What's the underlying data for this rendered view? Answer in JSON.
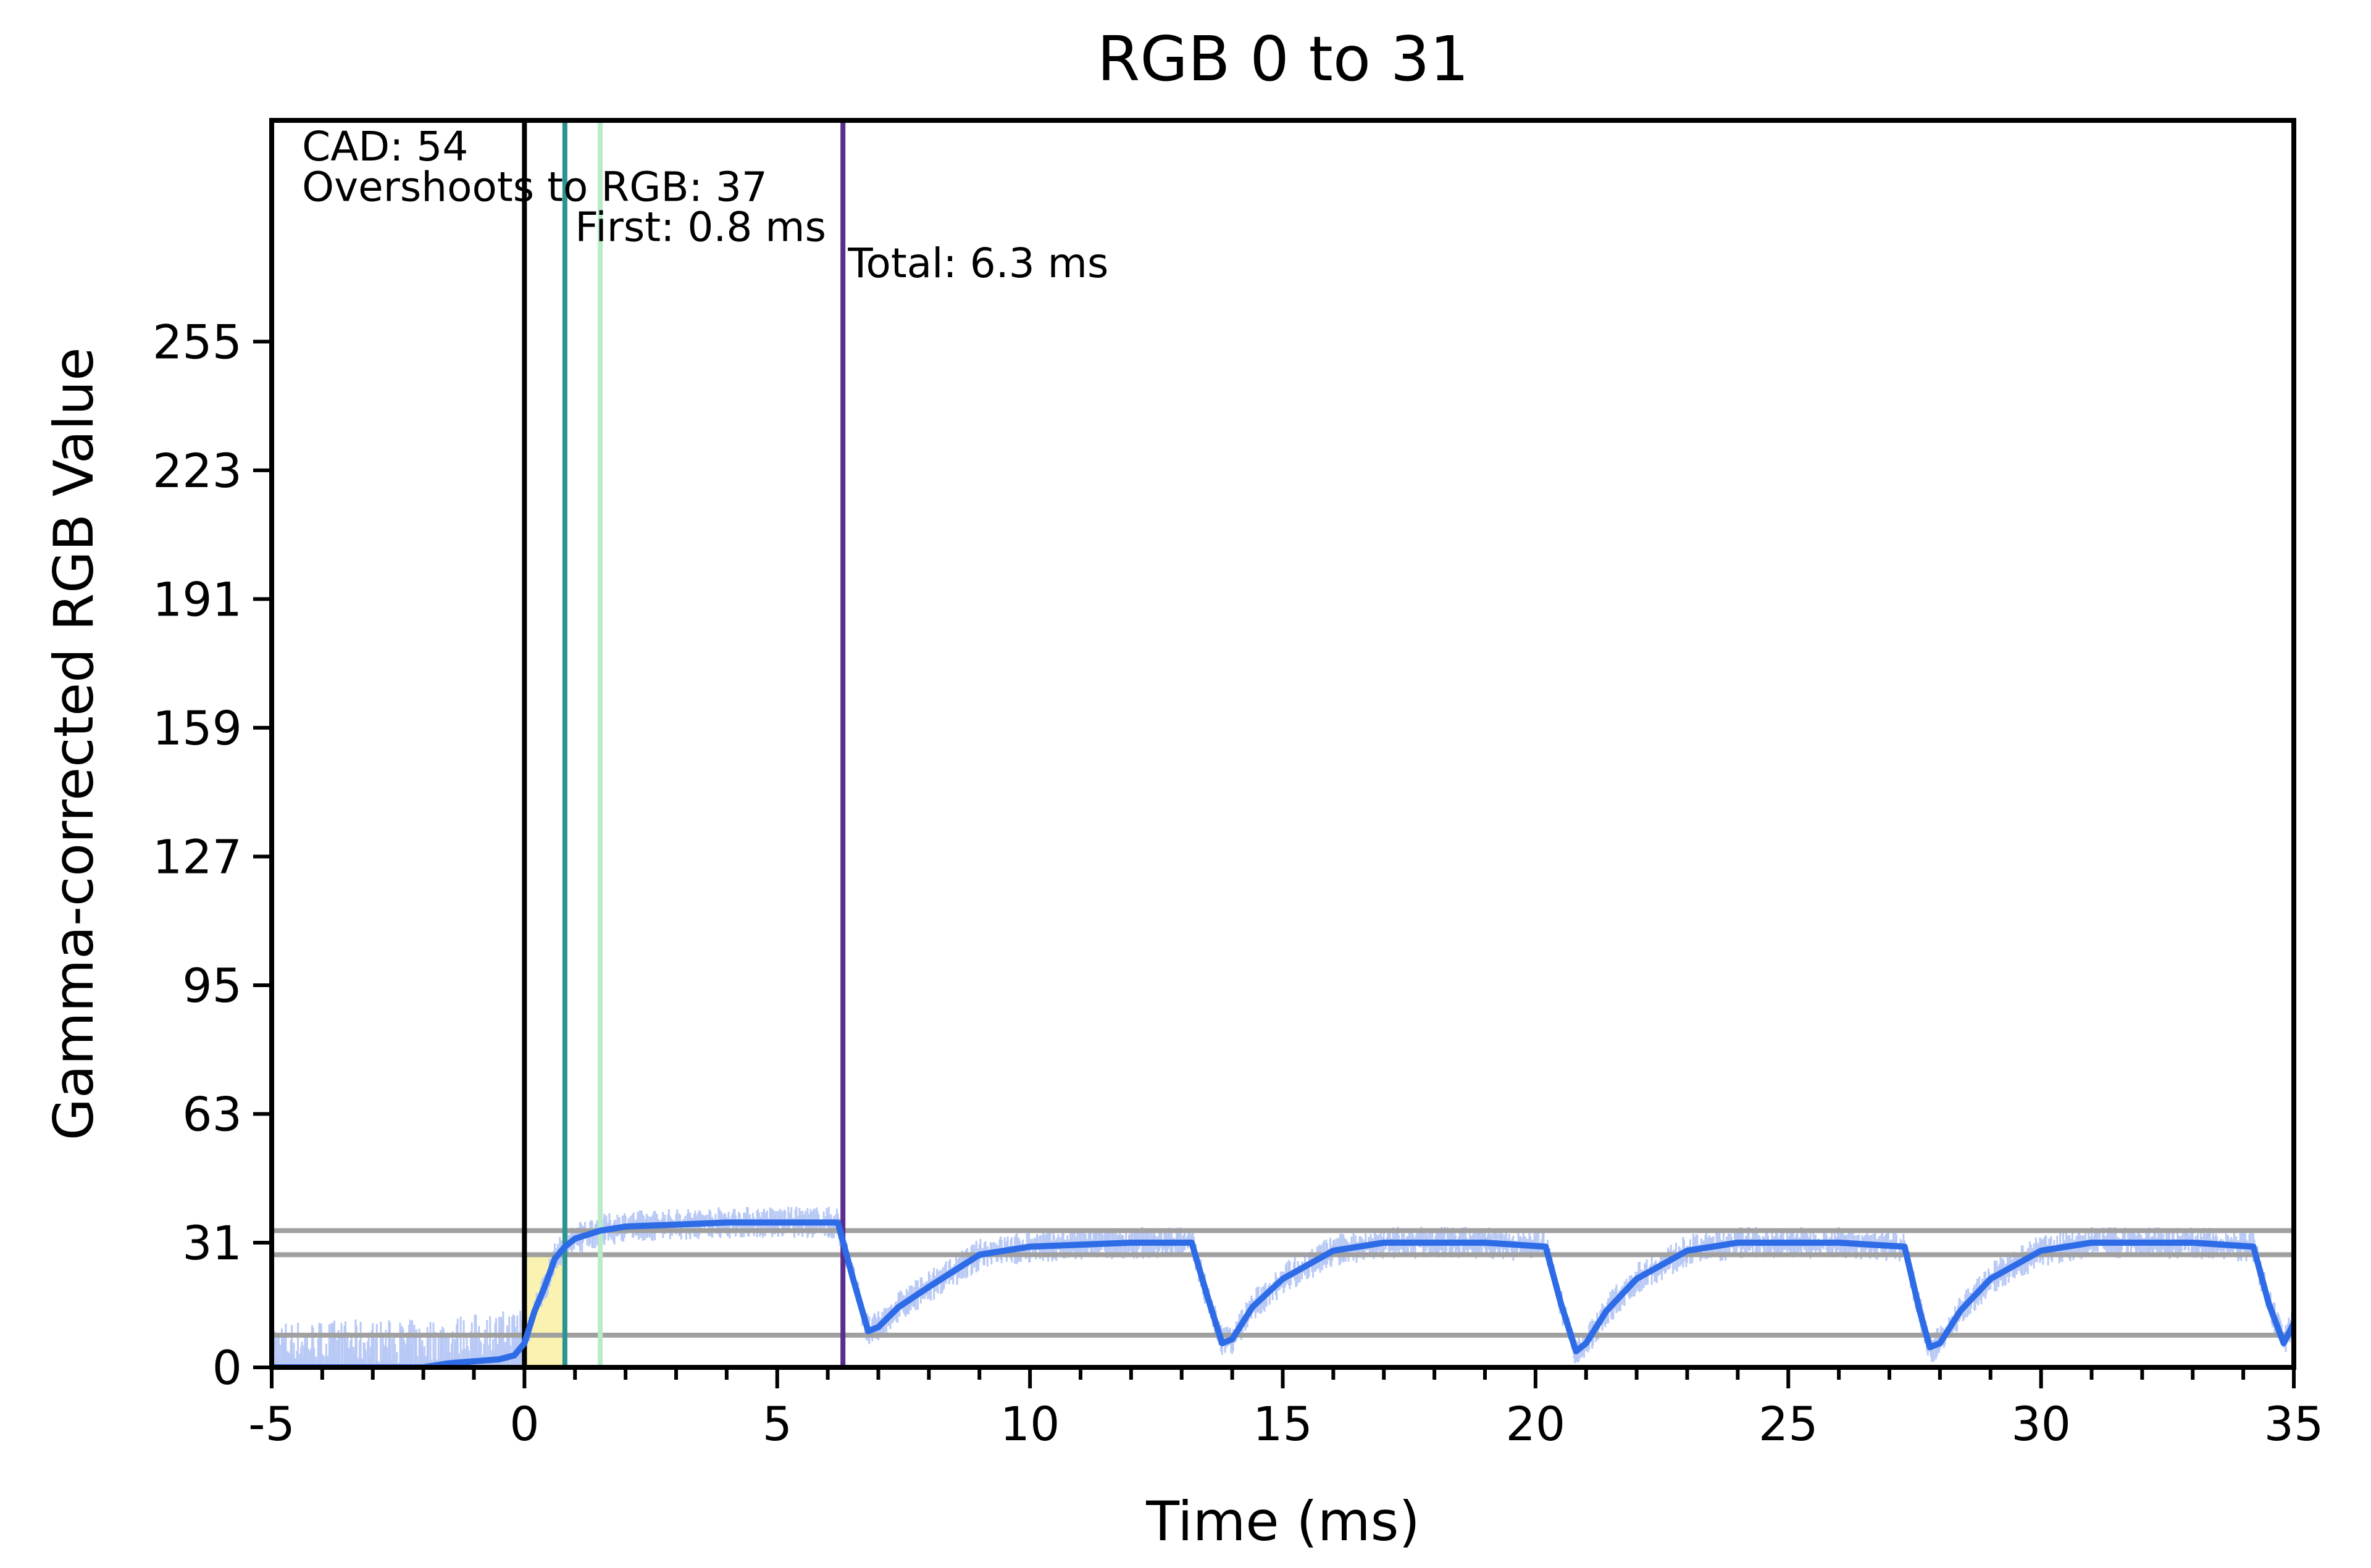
{
  "chart_data": {
    "type": "line",
    "title": "RGB 0 to 31",
    "xlabel": "Time (ms)",
    "ylabel": "Gamma-corrected RGB Value",
    "xlim": [
      -5,
      35
    ],
    "ylim": [
      0,
      310
    ],
    "x_ticks": [
      -5,
      0,
      5,
      10,
      15,
      20,
      25,
      30,
      35
    ],
    "x_tick_labels": [
      "-5",
      "0",
      "5",
      "10",
      "15",
      "20",
      "25",
      "30",
      "35"
    ],
    "y_ticks": [
      0,
      31,
      63,
      95,
      127,
      159,
      191,
      223,
      255
    ],
    "y_tick_labels": [
      "0",
      "31",
      "63",
      "95",
      "127",
      "159",
      "191",
      "223",
      "255"
    ],
    "grid": false,
    "annotations": [
      {
        "text": "CAD: 54",
        "x": -4.4,
        "y": 300
      },
      {
        "text": "Overshoots to RGB: 37",
        "x": -4.4,
        "y": 290
      },
      {
        "text": "First: 0.8 ms",
        "x": 1.0,
        "y": 280
      },
      {
        "text": "Total: 6.3 ms",
        "x": 6.4,
        "y": 271
      }
    ],
    "horizontal_lines": [
      {
        "y": 34,
        "color": "#a0a0a0"
      },
      {
        "y": 28,
        "color": "#a0a0a0"
      },
      {
        "y": 8,
        "color": "#a0a0a0"
      }
    ],
    "vertical_lines": [
      {
        "x": 0,
        "color": "#000000"
      },
      {
        "x": 0.8,
        "color": "#2a9490"
      },
      {
        "x": 1.5,
        "color": "#b8ecc8"
      },
      {
        "x": 6.3,
        "color": "#5b2d8e"
      }
    ],
    "shaded_region": {
      "x": [
        0,
        0.8
      ],
      "y": [
        0,
        28
      ],
      "color": "#f8ef9c"
    },
    "series": [
      {
        "style": "smoothed",
        "color": "#2e6be6",
        "x": [
          -5,
          -2,
          -1.5,
          -1,
          -0.5,
          -0.2,
          0,
          0.2,
          0.4,
          0.6,
          0.8,
          1.0,
          1.5,
          2,
          3,
          4,
          5,
          6.2,
          6.5,
          6.8,
          7.0,
          7.4,
          8,
          8.5,
          9,
          10,
          11,
          12,
          13.2,
          13.5,
          13.8,
          14.0,
          14.4,
          15,
          16,
          17,
          18,
          19,
          20.2,
          20.5,
          20.8,
          21.0,
          21.4,
          22,
          23,
          24,
          25,
          26,
          27.3,
          27.6,
          27.8,
          28.0,
          28.4,
          29,
          30,
          31,
          32,
          33,
          34.2,
          34.5,
          34.8,
          35
        ],
        "y": [
          0,
          0,
          1,
          1.5,
          2,
          3,
          6,
          14,
          20,
          27,
          30,
          32,
          34,
          35,
          35.5,
          36,
          36,
          36,
          22,
          9,
          10,
          15,
          20,
          24,
          28,
          30,
          30.5,
          31,
          31,
          18,
          6,
          7,
          15,
          22,
          29,
          31,
          31,
          31,
          30,
          16,
          4,
          6,
          14,
          22,
          29,
          31,
          31,
          31,
          30,
          14,
          5,
          6,
          14,
          22,
          29,
          31,
          31,
          31,
          30,
          16,
          6,
          11
        ]
      }
    ]
  }
}
